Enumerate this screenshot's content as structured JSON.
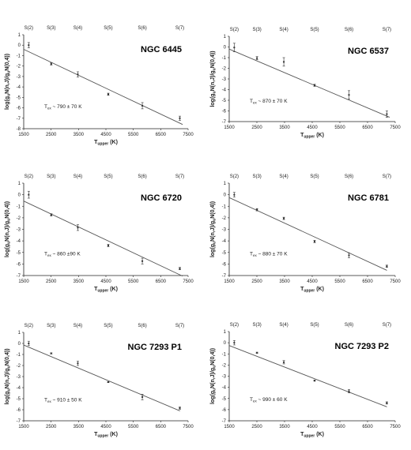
{
  "chart_data": [
    {
      "type": "scatter",
      "title": "NGC 6445",
      "annotation": {
        "prefix": "T",
        "sub": "ex",
        "text": " ~ 790 ± 70 K"
      },
      "ylabel": "log(g",
      "xlabel": {
        "main": "T",
        "sub": "upper",
        "unit": " (K)"
      },
      "xlim": [
        1500,
        7500
      ],
      "ylim": [
        -8,
        1
      ],
      "x_ticks": [
        1500,
        2500,
        3500,
        4500,
        5500,
        6500,
        7500
      ],
      "y_ticks": [
        1,
        0,
        -1,
        -2,
        -3,
        -4,
        -5,
        -6,
        -7,
        -8
      ],
      "top_labels": [
        "S(2)",
        "S(3)",
        "S(4)",
        "S(5)",
        "S(6)",
        "S(7)"
      ],
      "points": {
        "x": [
          1682,
          2504,
          3474,
          4586,
          5829,
          7197
        ],
        "y": [
          0.0,
          -1.8,
          -2.8,
          -4.7,
          -5.8,
          -7.0
        ],
        "err": [
          0.25,
          0.1,
          0.25,
          0.1,
          0.3,
          0.2
        ]
      },
      "fit": {
        "x": [
          1500,
          7300
        ],
        "y": [
          -0.4,
          -7.6
        ]
      }
    },
    {
      "type": "scatter",
      "title": "NGC 6537",
      "annotation": {
        "prefix": "T",
        "sub": "ex",
        "text": " ~ 870 ± 70 K"
      },
      "ylabel": "log(g",
      "xlabel": {
        "main": "T",
        "sub": "upper",
        "unit": " (K)"
      },
      "xlim": [
        1500,
        7500
      ],
      "ylim": [
        -7,
        1
      ],
      "x_ticks": [
        1500,
        2500,
        3500,
        4500,
        5500,
        6500,
        7500
      ],
      "y_ticks": [
        1,
        0,
        -1,
        -2,
        -3,
        -4,
        -5,
        -6,
        -7
      ],
      "top_labels": [
        "S(2)",
        "S(3)",
        "S(4)",
        "S(5)",
        "S(6)",
        "S(7)"
      ],
      "points": {
        "x": [
          1682,
          2504,
          3474,
          4586,
          5829,
          7197
        ],
        "y": [
          -0.05,
          -1.05,
          -1.4,
          -3.6,
          -4.5,
          -6.3
        ],
        "err": [
          0.4,
          0.15,
          0.4,
          0.1,
          0.4,
          0.3
        ]
      },
      "fit": {
        "x": [
          1500,
          7300
        ],
        "y": [
          -0.2,
          -6.6
        ]
      }
    },
    {
      "type": "scatter",
      "title": "NGC 6720",
      "annotation": {
        "prefix": "T",
        "sub": "ex",
        "text": " ~ 860 ±90 K"
      },
      "ylabel": "log(g",
      "xlabel": {
        "main": "T",
        "sub": "upper",
        "unit": " (K)"
      },
      "xlim": [
        1500,
        7500
      ],
      "ylim": [
        -7,
        1
      ],
      "x_ticks": [
        1500,
        2500,
        3500,
        4500,
        5500,
        6500,
        7500
      ],
      "y_ticks": [
        1,
        0,
        -1,
        -2,
        -3,
        -4,
        -5,
        -6,
        -7
      ],
      "top_labels": [
        "S(2)",
        "S(3)",
        "S(4)",
        "S(5)",
        "S(6)",
        "S(7)"
      ],
      "points": {
        "x": [
          1682,
          2504,
          3474,
          4586,
          5829,
          7197
        ],
        "y": [
          0.0,
          -1.75,
          -2.85,
          -4.4,
          -5.75,
          -6.4
        ],
        "err": [
          0.3,
          0.1,
          0.25,
          0.1,
          0.25,
          0.1
        ]
      },
      "fit": {
        "x": [
          1500,
          7300
        ],
        "y": [
          -0.55,
          -7.05
        ]
      }
    },
    {
      "type": "scatter",
      "title": "NGC 6781",
      "annotation": {
        "prefix": "T",
        "sub": "ex",
        "text": " ~ 880 ± 70 K"
      },
      "ylabel": "log(g",
      "xlabel": {
        "main": "T",
        "sub": "upper",
        "unit": " (K)"
      },
      "xlim": [
        1500,
        7500
      ],
      "ylim": [
        -7,
        1
      ],
      "x_ticks": [
        1500,
        2500,
        3500,
        4500,
        5500,
        6500,
        7500
      ],
      "y_ticks": [
        1,
        0,
        -1,
        -2,
        -3,
        -4,
        -5,
        -6,
        -7
      ],
      "top_labels": [
        "S(2)",
        "S(3)",
        "S(4)",
        "S(5)",
        "S(6)",
        "S(7)"
      ],
      "points": {
        "x": [
          1682,
          2504,
          3474,
          4586,
          5829,
          7197
        ],
        "y": [
          0.0,
          -1.3,
          -2.05,
          -4.05,
          -5.25,
          -6.2
        ],
        "err": [
          0.2,
          0.1,
          0.1,
          0.1,
          0.2,
          0.1
        ]
      },
      "fit": {
        "x": [
          1500,
          7200
        ],
        "y": [
          -0.25,
          -6.55
        ]
      }
    },
    {
      "type": "scatter",
      "title": "NGC 7293 P1",
      "annotation": {
        "prefix": "T",
        "sub": "ex",
        "text": " ~ 910 ± 50 K"
      },
      "ylabel": "log(g",
      "xlabel": {
        "main": "T",
        "sub": "upper",
        "unit": " (K)"
      },
      "xlim": [
        1500,
        7500
      ],
      "ylim": [
        -7,
        1
      ],
      "x_ticks": [
        1500,
        2500,
        3500,
        4500,
        5500,
        6500,
        7500
      ],
      "y_ticks": [
        1,
        0,
        -1,
        -2,
        -3,
        -4,
        -5,
        -6,
        -7
      ],
      "top_labels": [
        "S(2)",
        "S(3)",
        "S(4)",
        "S(5)",
        "S(6)",
        "S(7)"
      ],
      "points": {
        "x": [
          1682,
          2504,
          3474,
          4586,
          5829,
          7197
        ],
        "y": [
          0.0,
          -0.9,
          -1.8,
          -3.5,
          -4.85,
          -5.85
        ],
        "err": [
          0.2,
          0.05,
          0.2,
          0.05,
          0.25,
          0.1
        ]
      },
      "fit": {
        "x": [
          1500,
          7200
        ],
        "y": [
          -0.15,
          -6.1
        ]
      }
    },
    {
      "type": "scatter",
      "title": "NGC 7293 P2",
      "annotation": {
        "prefix": "T",
        "sub": "ex",
        "text": " ~ 990 ± 60 K"
      },
      "ylabel": "log(g",
      "xlabel": {
        "main": "T",
        "sub": "upper",
        "unit": " (K)"
      },
      "xlim": [
        1500,
        7500
      ],
      "ylim": [
        -7,
        1
      ],
      "x_ticks": [
        1500,
        2500,
        3500,
        4500,
        5500,
        6500,
        7500
      ],
      "y_ticks": [
        1,
        0,
        -1,
        -2,
        -3,
        -4,
        -5,
        -6,
        -7
      ],
      "top_labels": [
        "S(2)",
        "S(3)",
        "S(4)",
        "S(5)",
        "S(6)",
        "S(7)"
      ],
      "points": {
        "x": [
          1682,
          2504,
          3474,
          4586,
          5829,
          7197
        ],
        "y": [
          0.0,
          -0.9,
          -1.75,
          -3.4,
          -4.35,
          -5.4
        ],
        "err": [
          0.2,
          0.05,
          0.15,
          0.05,
          0.15,
          0.1
        ]
      },
      "fit": {
        "x": [
          1500,
          7200
        ],
        "y": [
          -0.25,
          -5.75
        ]
      }
    }
  ],
  "common": {
    "ylabel_parts": {
      "a": "log(g",
      "a_sub": "u",
      "b": "N(n,J)/g",
      "b_sub": "u",
      "c": "N(0,4))"
    }
  },
  "colors": {
    "fit_line": "#555555",
    "axis": "#222222",
    "marker": "#333333"
  }
}
